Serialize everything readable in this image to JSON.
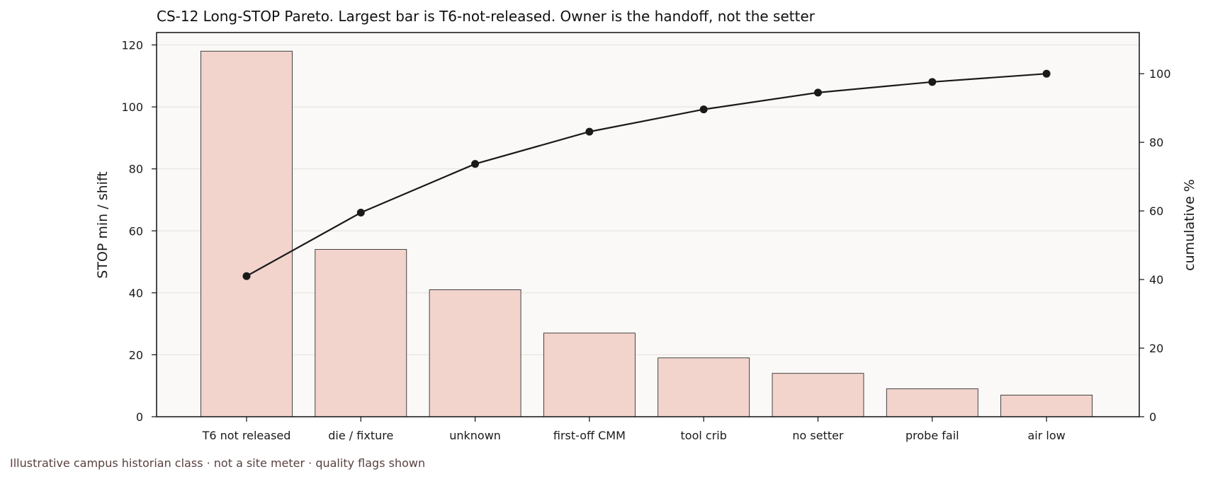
{
  "chart_data": {
    "type": "bar",
    "title": "CS-12  Long-STOP Pareto. Largest bar is T6-not-released. Owner is the handoff, not the setter",
    "ylabel": "STOP min / shift",
    "y2label": "cumulative %",
    "ylim": [
      0,
      124
    ],
    "y2lim": [
      0,
      112
    ],
    "yticks": [
      0,
      20,
      40,
      60,
      80,
      100,
      120
    ],
    "y2ticks": [
      0,
      20,
      40,
      60,
      80,
      100
    ],
    "grid": true,
    "categories": [
      "T6 not released",
      "die / fixture",
      "unknown",
      "first-off CMM",
      "tool crib",
      "no setter",
      "probe fail",
      "air low"
    ],
    "values": [
      118,
      54,
      41,
      27,
      19,
      14,
      9,
      7
    ],
    "cumulative_percent": [
      41,
      59.5,
      73.7,
      83.1,
      89.6,
      94.5,
      97.6,
      100
    ],
    "colors": {
      "bar_fill": "#f2d4cd",
      "bar_stroke": "#1a1a1a",
      "line": "#1a1a1a",
      "plot_bg": "#faf9f7",
      "grid": "#e4e1dc"
    }
  },
  "footnote": "Illustrative campus historian class  ·  not a site meter  ·  quality flags shown"
}
